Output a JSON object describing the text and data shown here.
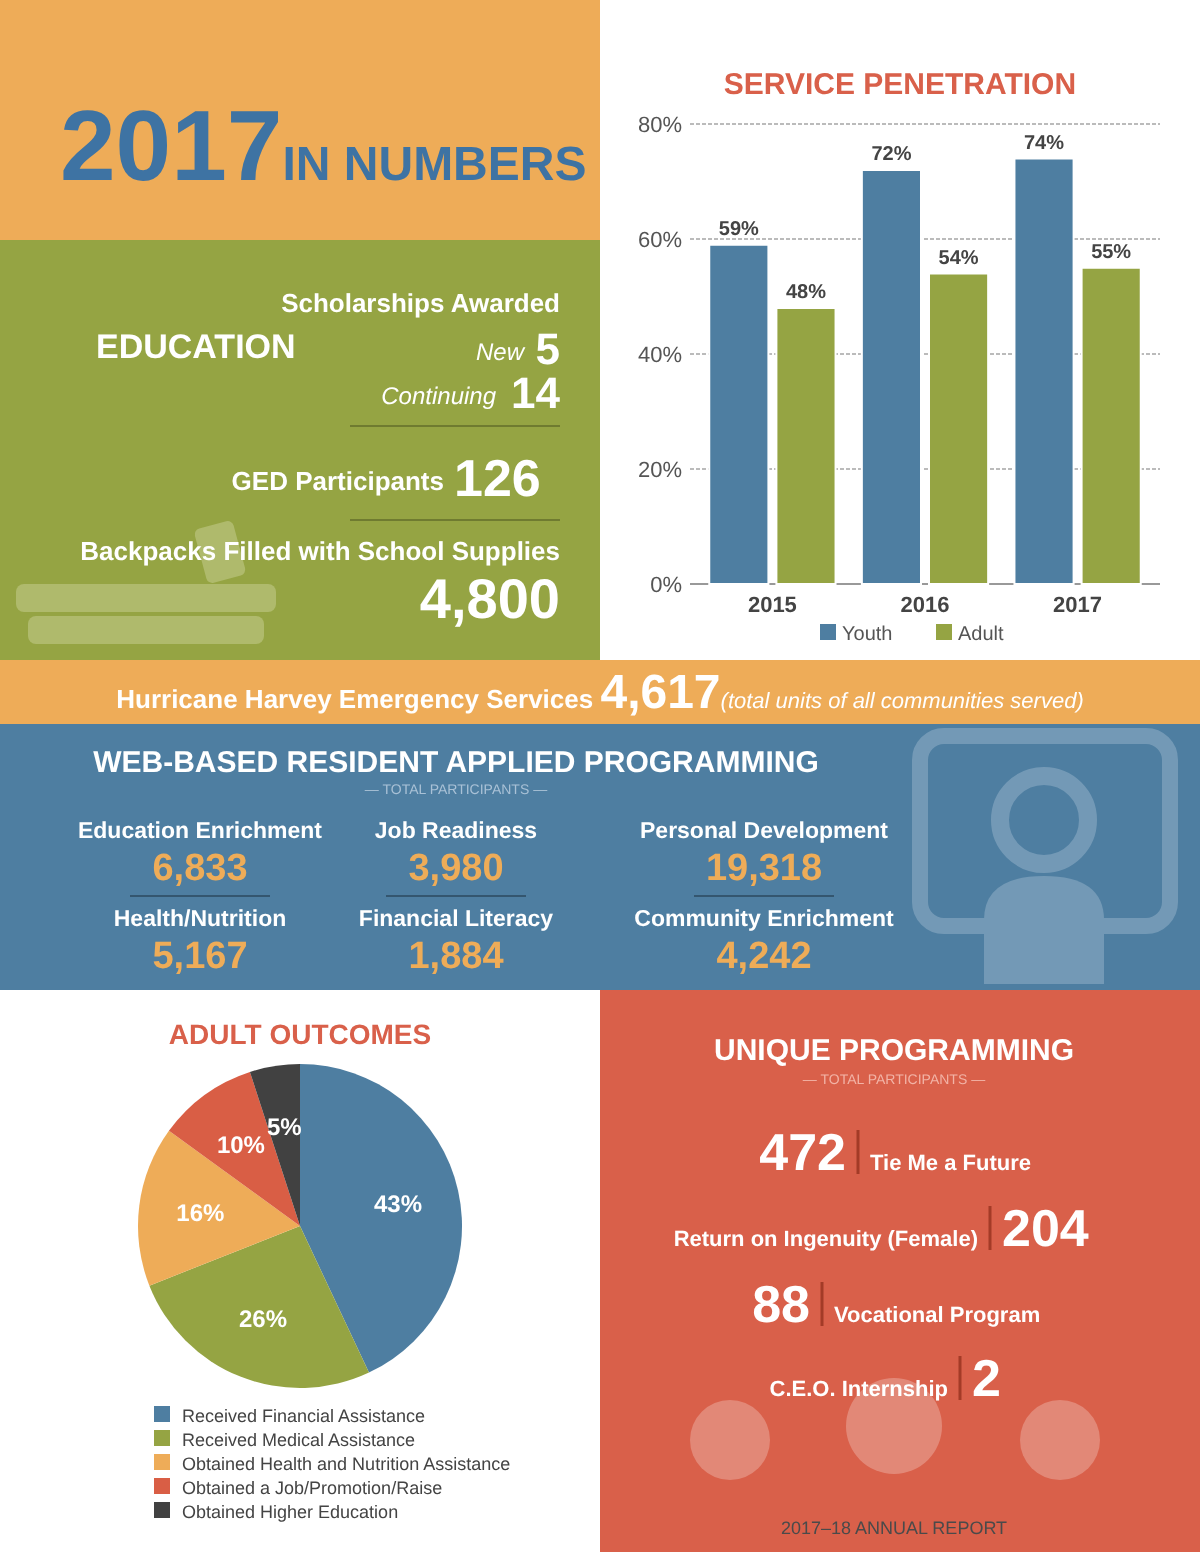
{
  "chart_data": [
    {
      "type": "other",
      "title": "2017",
      "subtitle": "IN NUMBERS"
    },
    {
      "type": "other",
      "title": "EDUCATION",
      "subtitle": "Scholarships Awarded",
      "categories": [
        "New",
        "Continuing",
        "GED Participants",
        "Backpacks Filled with School Supplies"
      ],
      "values": [
        5,
        14,
        126,
        4800
      ],
      "value_labels": [
        "5",
        "14",
        "126",
        "4,800"
      ]
    },
    {
      "type": "bar",
      "title": "SERVICE PENETRATION",
      "categories": [
        "2015",
        "2016",
        "2017"
      ],
      "series": [
        {
          "name": "Youth",
          "color": "#4e7ea1",
          "values": [
            59,
            72,
            74
          ],
          "value_labels": [
            "59%",
            "72%",
            "74%"
          ]
        },
        {
          "name": "Adult",
          "color": "#95a443",
          "values": [
            48,
            54,
            55
          ],
          "value_labels": [
            "48%",
            "54%",
            "55%"
          ]
        }
      ],
      "ylim": [
        0,
        80
      ],
      "yticks": [
        {
          "value": 0,
          "label": "0%"
        },
        {
          "value": 20,
          "label": "20%"
        },
        {
          "value": 40,
          "label": "40%"
        },
        {
          "value": 60,
          "label": "60%"
        },
        {
          "value": 80,
          "label": "80%"
        }
      ],
      "grid": "y",
      "legend": "bottom"
    },
    {
      "type": "other",
      "categories": [
        "Hurricane Harvey Emergency Services"
      ],
      "values": [
        4617
      ],
      "value_labels": [
        "4,617"
      ],
      "annotations": [
        "(total units of all communities served)"
      ]
    },
    {
      "type": "other",
      "title": "WEB-BASED RESIDENT APPLIED PROGRAMMING",
      "subtitle": "— TOTAL PARTICIPANTS —",
      "categories": [
        "Education Enrichment",
        "Job Readiness",
        "Personal Development",
        "Health/Nutrition",
        "Financial Literacy",
        "Community Enrichment"
      ],
      "values": [
        6833,
        3980,
        19318,
        5167,
        1884,
        4242
      ],
      "value_labels": [
        "6,833",
        "3,980",
        "19,318",
        "5,167",
        "1,884",
        "4,242"
      ]
    },
    {
      "type": "pie",
      "title": "ADULT OUTCOMES",
      "categories": [
        "Received Financial Assistance",
        "Received Medical Assistance",
        "Obtained Health and Nutrition Assistance",
        "Obtained a Job/Promotion/Raise",
        "Obtained Higher Education"
      ],
      "values": [
        43,
        26,
        16,
        10,
        5
      ],
      "value_labels": [
        "43%",
        "26%",
        "16%",
        "10%",
        "5%"
      ],
      "colors": [
        "#4e7ea1",
        "#95a443",
        "#eeac58",
        "#d95e45",
        "#414141"
      ],
      "legend": "bottom"
    },
    {
      "type": "other",
      "title": "UNIQUE PROGRAMMING",
      "subtitle": "— TOTAL PARTICIPANTS —",
      "categories": [
        "Tie Me a Future",
        "Return on Ingenuity (Female)",
        "Vocational Program",
        "C.E.O. Internship"
      ],
      "values": [
        472,
        204,
        88,
        2
      ],
      "value_labels": [
        "472",
        "204",
        "88",
        "2"
      ],
      "annotations": [
        "2017–18 ANNUAL REPORT"
      ]
    }
  ]
}
